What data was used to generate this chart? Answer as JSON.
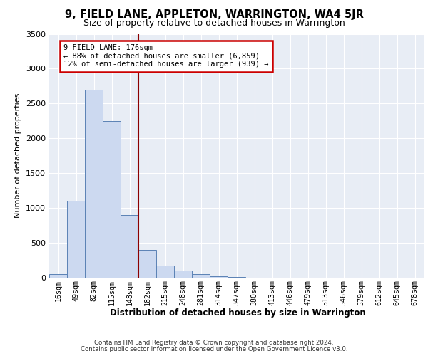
{
  "title": "9, FIELD LANE, APPLETON, WARRINGTON, WA4 5JR",
  "subtitle": "Size of property relative to detached houses in Warrington",
  "xlabel": "Distribution of detached houses by size in Warrington",
  "ylabel": "Number of detached properties",
  "bar_labels": [
    "16sqm",
    "49sqm",
    "82sqm",
    "115sqm",
    "148sqm",
    "182sqm",
    "215sqm",
    "248sqm",
    "281sqm",
    "314sqm",
    "347sqm",
    "380sqm",
    "413sqm",
    "446sqm",
    "479sqm",
    "513sqm",
    "546sqm",
    "579sqm",
    "612sqm",
    "645sqm",
    "678sqm"
  ],
  "bar_values": [
    50,
    1100,
    2700,
    2250,
    900,
    400,
    175,
    100,
    50,
    25,
    10,
    5,
    3,
    2,
    1,
    1,
    0,
    0,
    0,
    0,
    0
  ],
  "bar_color": "#ccd9f0",
  "bar_edge_color": "#5b82b5",
  "vline_color": "#8b0000",
  "annotation_text": "9 FIELD LANE: 176sqm\n← 88% of detached houses are smaller (6,859)\n12% of semi-detached houses are larger (939) →",
  "annotation_box_color": "white",
  "annotation_box_edge": "#cc0000",
  "ylim": [
    0,
    3500
  ],
  "yticks": [
    0,
    500,
    1000,
    1500,
    2000,
    2500,
    3000,
    3500
  ],
  "bg_color": "#e8edf5",
  "grid_color": "#ffffff",
  "footer_line1": "Contains HM Land Registry data © Crown copyright and database right 2024.",
  "footer_line2": "Contains public sector information licensed under the Open Government Licence v3.0."
}
